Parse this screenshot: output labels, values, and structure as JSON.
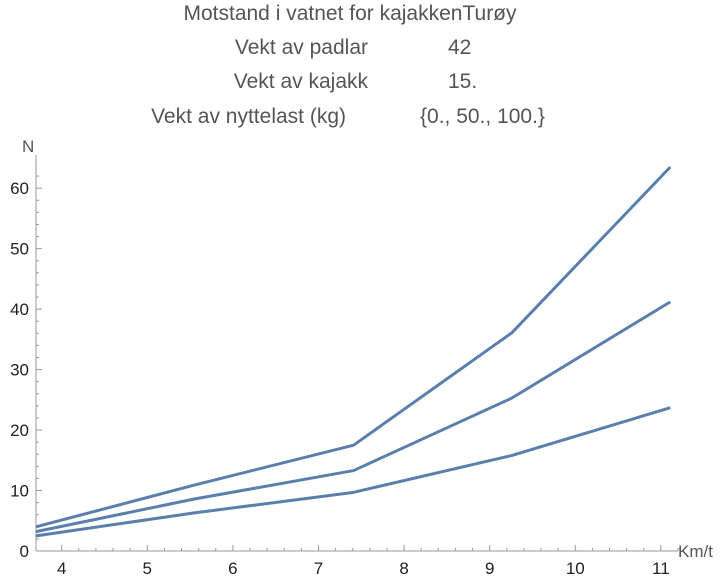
{
  "header": {
    "title": "Motstand i vatnet for kajakkenTurøy",
    "rows": [
      {
        "label": "Vekt av padlar",
        "value": "42"
      },
      {
        "label": "Vekt av kajakk",
        "value": "15."
      },
      {
        "label": "Vekt av nyttelast (kg)",
        "value": "{0., 50., 100.}"
      }
    ]
  },
  "chart_data": {
    "type": "line",
    "xlabel": "Km/t",
    "ylabel": "N",
    "xlim": [
      3.7,
      11.2
    ],
    "ylim": [
      0,
      63.5
    ],
    "xticks": [
      4,
      5,
      6,
      7,
      8,
      9,
      10,
      11
    ],
    "yticks": [
      0,
      10,
      20,
      30,
      40,
      50,
      60
    ],
    "grid": false,
    "color": "#5b7fad",
    "series": [
      {
        "x": [
          3.7,
          5.55,
          7.41,
          9.26,
          11.11
        ],
        "y": [
          2.5,
          6.3,
          9.7,
          15.8,
          23.7
        ]
      },
      {
        "x": [
          3.7,
          5.55,
          7.41,
          9.26,
          11.11
        ],
        "y": [
          3.2,
          8.6,
          13.3,
          25.3,
          41.2
        ]
      },
      {
        "x": [
          3.7,
          5.55,
          7.41,
          9.26,
          11.11
        ],
        "y": [
          4.0,
          10.9,
          17.5,
          36.1,
          63.5
        ]
      }
    ]
  }
}
